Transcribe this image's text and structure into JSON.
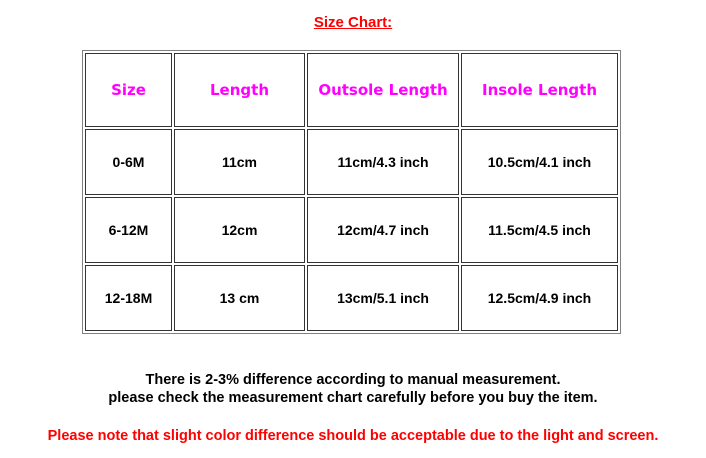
{
  "title": "Size Chart:",
  "table": {
    "headers": [
      "Size",
      "Length",
      "Outsole Length",
      "Insole Length"
    ],
    "rows": [
      [
        "0-6M",
        "11cm",
        "11cm/4.3 inch",
        "10.5cm/4.1 inch"
      ],
      [
        "6-12M",
        "12cm",
        "12cm/4.7 inch",
        "11.5cm/4.5 inch"
      ],
      [
        "12-18M",
        "13 cm",
        "13cm/5.1 inch",
        "12.5cm/4.9 inch"
      ]
    ]
  },
  "notes": {
    "line1": "There is 2-3% difference according to manual measurement.",
    "line2": "please check the measurement chart carefully before you buy the item.",
    "warning": "Please note that slight color difference should be acceptable due to the light and screen."
  },
  "colors": {
    "title": "#ff0000",
    "header": "#ff00ff",
    "warning": "#ff0000"
  }
}
